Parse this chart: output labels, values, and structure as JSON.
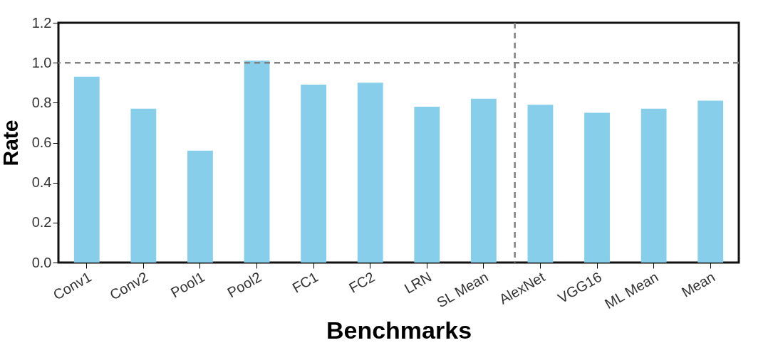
{
  "chart_data": {
    "type": "bar",
    "xlabel": "Benchmarks",
    "ylabel": "Rate",
    "categories": [
      "Conv1",
      "Conv2",
      "Pool1",
      "Pool2",
      "FC1",
      "FC2",
      "LRN",
      "SL Mean",
      "AlexNet",
      "VGG16",
      "ML Mean",
      "Mean"
    ],
    "values": [
      0.93,
      0.77,
      0.56,
      1.01,
      0.89,
      0.9,
      0.78,
      0.82,
      0.79,
      0.75,
      0.77,
      0.81
    ],
    "color": "#87ceeb",
    "ylim": [
      0,
      1.2
    ],
    "yticks": [
      {
        "value": 0,
        "label": "0.0"
      },
      0.2,
      0.4,
      0.6,
      0.8,
      {
        "value": 1,
        "label": "1.0"
      },
      1.2
    ],
    "grid": false,
    "ref_lines": [
      {
        "axis": "y",
        "value": 1.0,
        "line_style": "dashed",
        "color": "#808080"
      }
    ]
  }
}
